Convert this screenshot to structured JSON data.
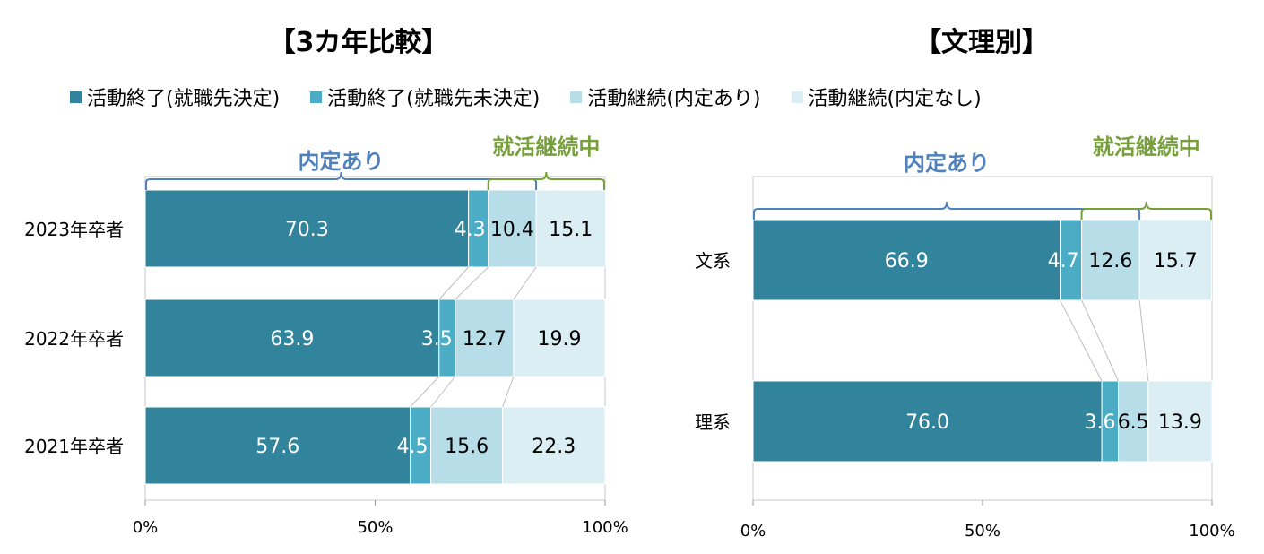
{
  "legend": {
    "items": [
      {
        "label": "活動終了(就職先決定)",
        "color": "#31849b"
      },
      {
        "label": "活動終了(就職先未決定)",
        "color": "#4bacc6"
      },
      {
        "label": "活動継続(内定あり)",
        "color": "#b7dee8"
      },
      {
        "label": "活動継続(内定なし)",
        "color": "#dbeef4"
      }
    ]
  },
  "annotations": {
    "naitei_ari": "内定あり",
    "shukatsu_keizokuchu": "就活継続中",
    "naitei_color": "#4f81bd",
    "keizoku_color": "#77a03c"
  },
  "chart_data": [
    {
      "type": "bar",
      "orientation": "horizontal",
      "stacked": true,
      "title": "【3カ年比較】",
      "categories": [
        "2023年卒者",
        "2022年卒者",
        "2021年卒者"
      ],
      "series": [
        {
          "name": "活動終了(就職先決定)",
          "values": [
            70.3,
            63.9,
            57.6
          ],
          "labels": [
            "70.3",
            "63.9",
            "57.6"
          ],
          "color": "#31849b"
        },
        {
          "name": "活動終了(就職先未決定)",
          "values": [
            4.3,
            3.5,
            4.5
          ],
          "labels": [
            "4.3",
            "3.5",
            "4.5"
          ],
          "color": "#4bacc6"
        },
        {
          "name": "活動継続(内定あり)",
          "values": [
            10.4,
            12.7,
            15.6
          ],
          "labels": [
            "10.4",
            "12.7",
            "15.6"
          ],
          "color": "#b7dee8"
        },
        {
          "name": "活動継続(内定なし)",
          "values": [
            15.1,
            19.9,
            22.3
          ],
          "labels": [
            "15.1",
            "19.9",
            "22.3"
          ],
          "color": "#dbeef4"
        }
      ],
      "xticks": [
        "0%",
        "50%",
        "100%"
      ],
      "xlim": [
        0,
        100
      ]
    },
    {
      "type": "bar",
      "orientation": "horizontal",
      "stacked": true,
      "title": "【文理別】",
      "categories": [
        "文系",
        "理系"
      ],
      "series": [
        {
          "name": "活動終了(就職先決定)",
          "values": [
            66.9,
            76.0
          ],
          "labels": [
            "66.9",
            "76.0"
          ],
          "color": "#31849b"
        },
        {
          "name": "活動終了(就職先未決定)",
          "values": [
            4.7,
            3.6
          ],
          "labels": [
            "4.7",
            "3.6"
          ],
          "color": "#4bacc6"
        },
        {
          "name": "活動継続(内定あり)",
          "values": [
            12.6,
            6.5
          ],
          "labels": [
            "12.6",
            "6.5"
          ],
          "color": "#b7dee8"
        },
        {
          "name": "活動継続(内定なし)",
          "values": [
            15.7,
            13.9
          ],
          "labels": [
            "15.7",
            "13.9"
          ],
          "color": "#dbeef4"
        }
      ],
      "xticks": [
        "0%",
        "50%",
        "100%"
      ],
      "xlim": [
        0,
        100
      ]
    }
  ]
}
